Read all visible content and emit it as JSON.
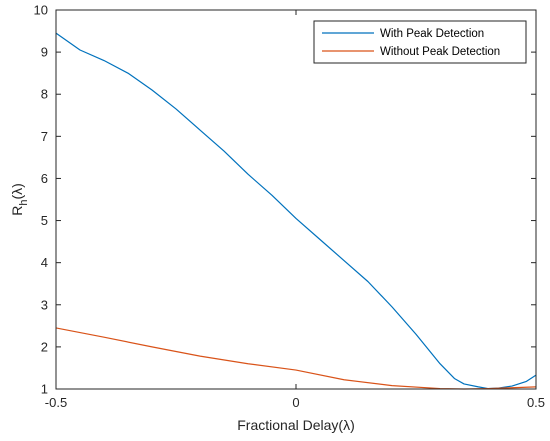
{
  "chart_data": {
    "type": "line",
    "title": "",
    "xlabel": "Fractional Delay(λ)",
    "ylabel_main": "R",
    "ylabel_sub": "h",
    "ylabel_tail": "(λ)",
    "xlim": [
      -0.5,
      0.5
    ],
    "ylim": [
      1,
      10
    ],
    "xticks": [
      -0.5,
      0,
      0.5
    ],
    "xtick_labels": [
      "-0.5",
      "0",
      "0.5"
    ],
    "yticks": [
      1,
      2,
      3,
      4,
      5,
      6,
      7,
      8,
      9,
      10
    ],
    "ytick_labels": [
      "1",
      "2",
      "3",
      "4",
      "5",
      "6",
      "7",
      "8",
      "9",
      "10"
    ],
    "grid": false,
    "legend_position": "top-right",
    "series": [
      {
        "name": "With Peak Detection",
        "color": "#0072BD",
        "x": [
          -0.5,
          -0.45,
          -0.4,
          -0.35,
          -0.3,
          -0.25,
          -0.2,
          -0.15,
          -0.1,
          -0.05,
          0,
          0.05,
          0.1,
          0.15,
          0.2,
          0.25,
          0.3,
          0.33,
          0.35,
          0.38,
          0.4,
          0.42,
          0.45,
          0.48,
          0.5
        ],
        "y": [
          9.45,
          9.05,
          8.8,
          8.5,
          8.1,
          7.65,
          7.15,
          6.65,
          6.1,
          5.6,
          5.05,
          4.55,
          4.05,
          3.55,
          2.95,
          2.3,
          1.6,
          1.25,
          1.12,
          1.05,
          1.01,
          1.02,
          1.07,
          1.18,
          1.33
        ]
      },
      {
        "name": "Without Peak Detection",
        "color": "#D95319",
        "x": [
          -0.5,
          -0.4,
          -0.3,
          -0.2,
          -0.1,
          0,
          0.1,
          0.2,
          0.3,
          0.35,
          0.4,
          0.45,
          0.5
        ],
        "y": [
          2.45,
          2.23,
          2.0,
          1.78,
          1.6,
          1.45,
          1.22,
          1.08,
          1.01,
          1.0,
          1.01,
          1.03,
          1.05
        ]
      }
    ]
  }
}
